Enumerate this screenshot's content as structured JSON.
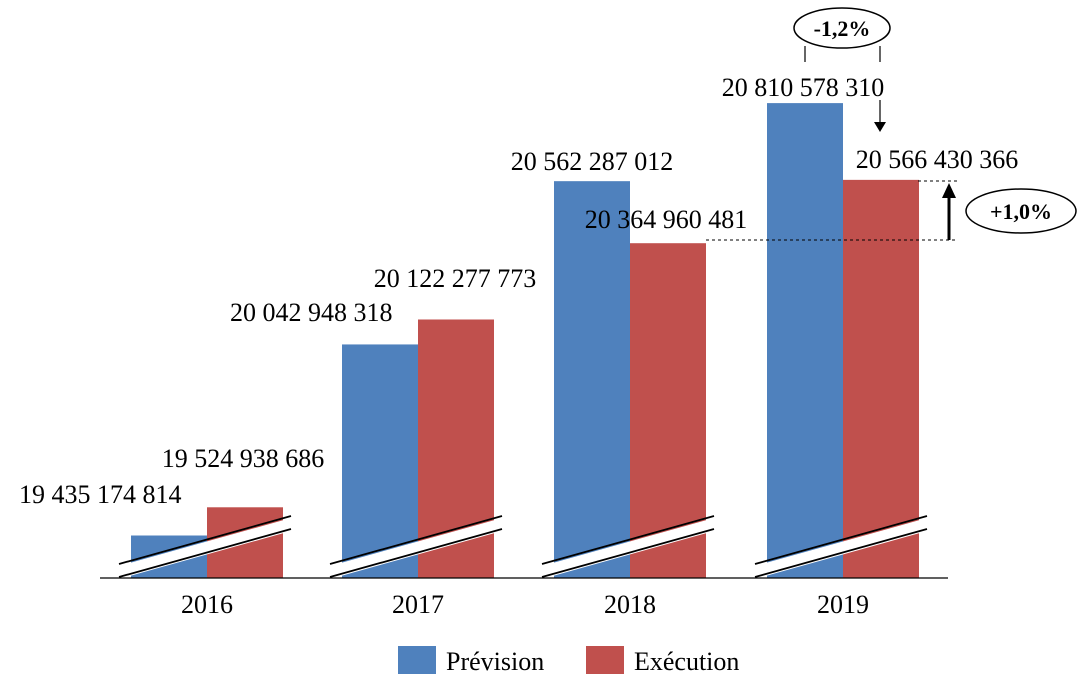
{
  "chart_data": {
    "type": "bar",
    "title": "",
    "xlabel": "",
    "ylabel": "",
    "axis_break": true,
    "categories": [
      "2016",
      "2017",
      "2018",
      "2019"
    ],
    "series": [
      {
        "name": "Prévision",
        "color": "#4f81bd",
        "values": [
          19435174814,
          20042948318,
          20562287012,
          20810578310
        ],
        "labels": [
          "19 435 174 814",
          "20 042 948 318",
          "20 562 287 012",
          "20 810 578 310"
        ]
      },
      {
        "name": "Exécution",
        "color": "#c0504d",
        "values": [
          19524938686,
          20122277773,
          20364960481,
          20566430366
        ],
        "labels": [
          "19 524 938 686",
          "20 122 277 773",
          "20 364 960 481",
          "20 566 430 366"
        ]
      }
    ],
    "annotations": {
      "gap_2019": "-1,2%",
      "growth_2019": "+1,0%"
    },
    "legend_position": "bottom",
    "grid": false
  }
}
